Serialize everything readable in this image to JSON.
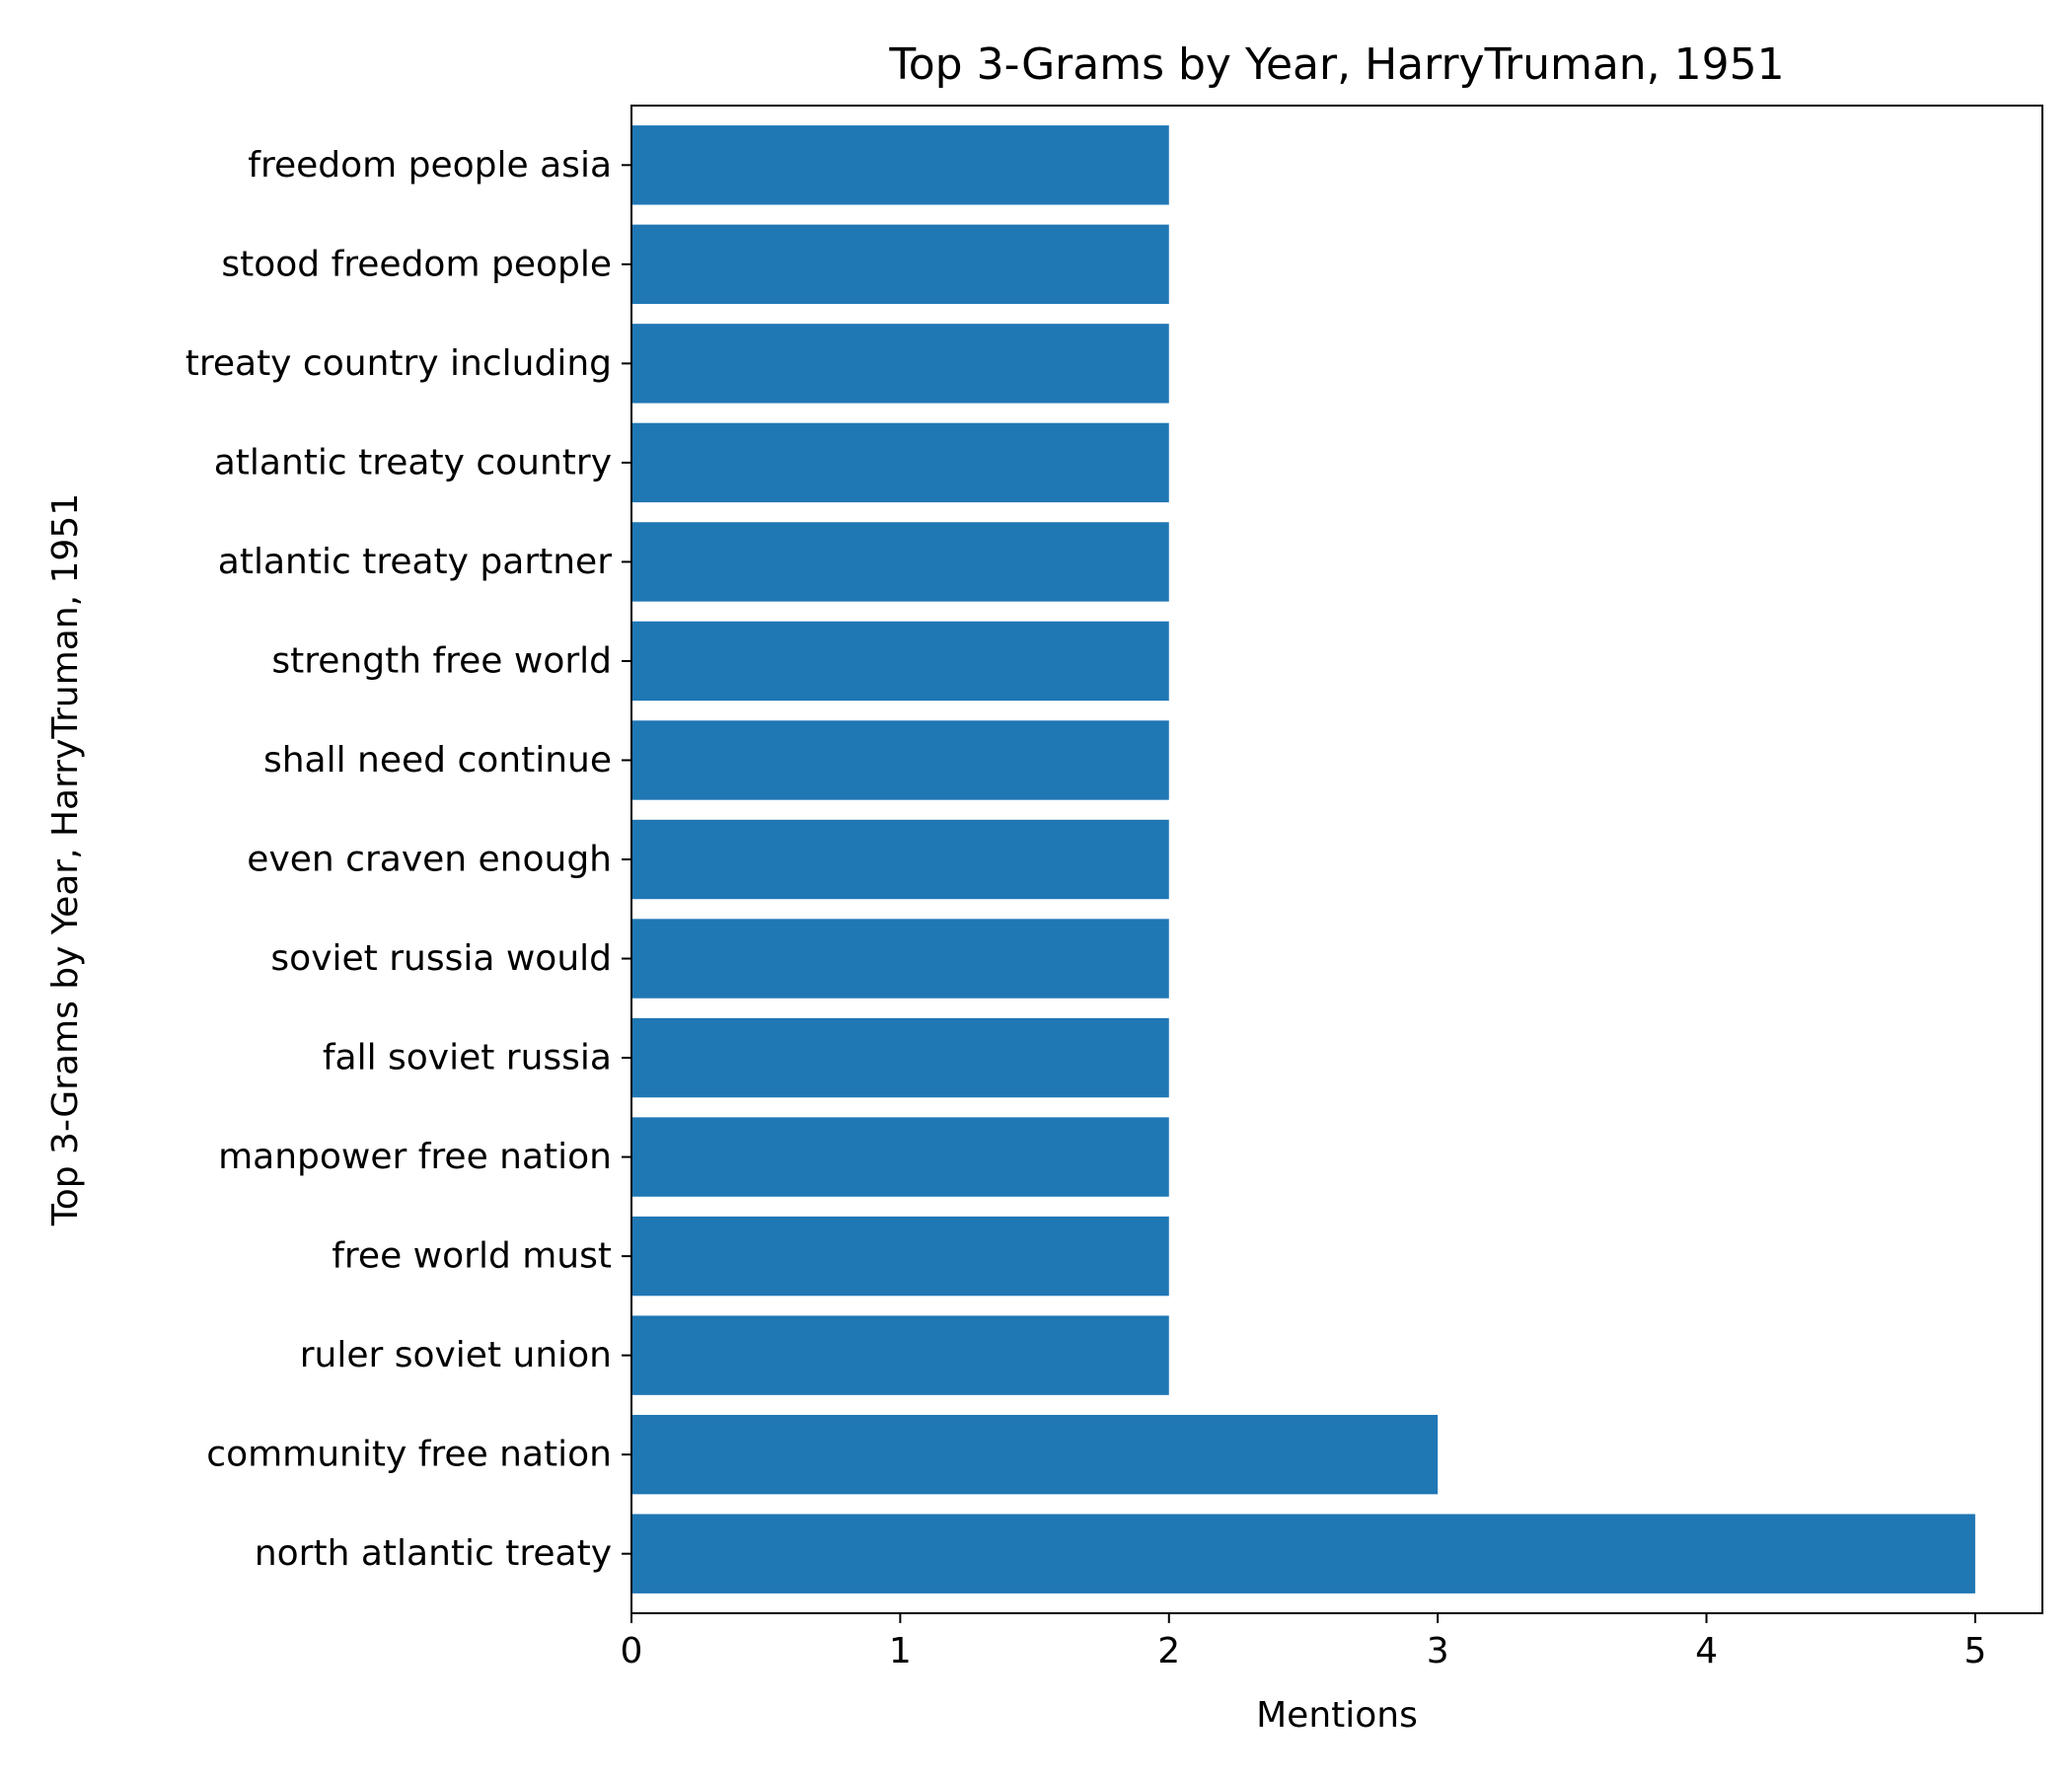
{
  "chart_data": {
    "type": "bar",
    "orientation": "horizontal",
    "title": "Top 3-Grams by Year, HarryTruman, 1951",
    "xlabel": "Mentions",
    "ylabel": "Top 3-Grams by Year, HarryTruman, 1951",
    "categories": [
      "north atlantic treaty",
      "community free nation",
      "ruler soviet union",
      "free world must",
      "manpower free nation",
      "fall soviet russia",
      "soviet russia would",
      "even craven enough",
      "shall need continue",
      "strength free world",
      "atlantic treaty partner",
      "atlantic treaty country",
      "treaty country including",
      "stood freedom people",
      "freedom people asia"
    ],
    "values": [
      5,
      3,
      2,
      2,
      2,
      2,
      2,
      2,
      2,
      2,
      2,
      2,
      2,
      2,
      2
    ],
    "xlim": [
      0,
      5.25
    ],
    "xticks": [
      0,
      1,
      2,
      3,
      4,
      5
    ],
    "grid": false,
    "legend": "none",
    "bar_color": "#1f77b4"
  }
}
